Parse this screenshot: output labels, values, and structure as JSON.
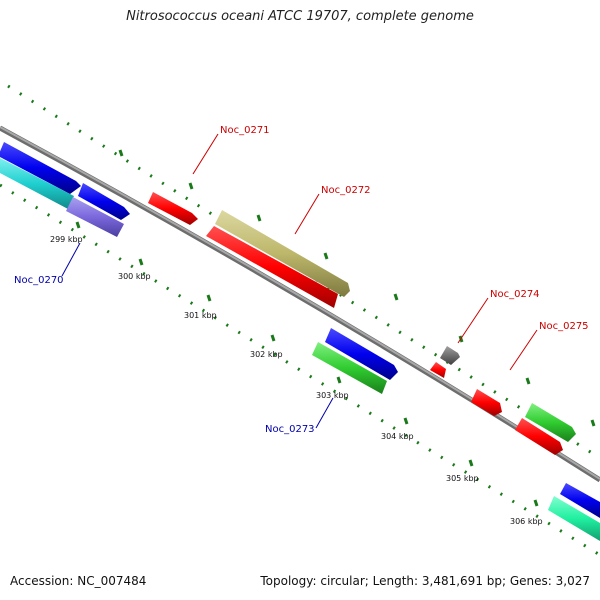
{
  "title": "Nitrosococcus oceani ATCC 19707, complete genome",
  "accession_line": "Accession: NC_007484",
  "stats_line": "Topology: circular; Length: 3,481,691 bp; Genes: 3,027",
  "colors": {
    "backbone": "#8a8a8a",
    "tick": "#1a7a1a",
    "label_red": "#cc0000",
    "label_blue": "#0000aa"
  },
  "ticks": [
    "299 kbp",
    "300 kbp",
    "301 kbp",
    "302 kbp",
    "303 kbp",
    "304 kbp",
    "305 kbp",
    "306 kbp"
  ],
  "gene_labels": [
    {
      "name": "Noc_0271",
      "color": "red"
    },
    {
      "name": "Noc_0272",
      "color": "red"
    },
    {
      "name": "Noc_0274",
      "color": "red"
    },
    {
      "name": "Noc_0275",
      "color": "red"
    },
    {
      "name": "Noc_0270",
      "color": "blue"
    },
    {
      "name": "Noc_0273",
      "color": "blue"
    }
  ]
}
